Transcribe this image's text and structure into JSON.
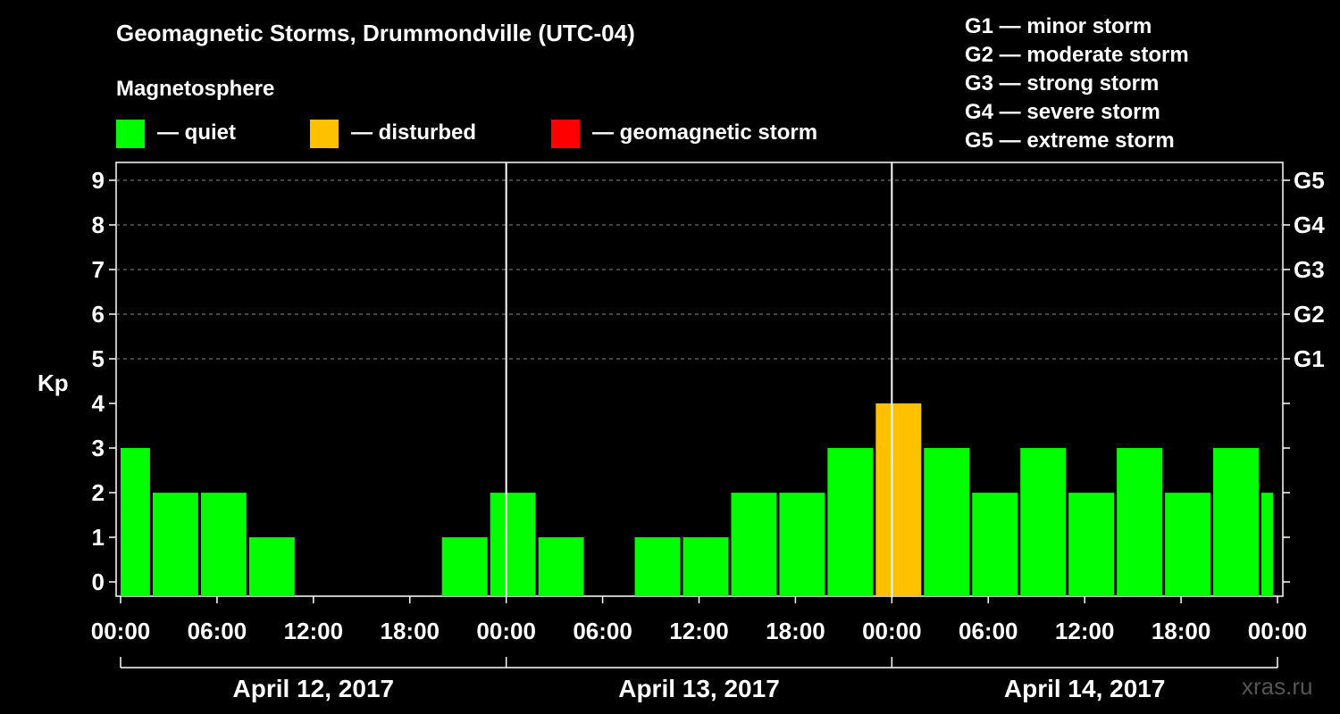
{
  "title": "Geomagnetic Storms, Drummondville (UTC-04)",
  "subtitle": "Magnetosphere",
  "legend": [
    {
      "label": "— quiet",
      "color": "#00ff00"
    },
    {
      "label": "— disturbed",
      "color": "#ffc000"
    },
    {
      "label": "— geomagnetic storm",
      "color": "#ff0000"
    }
  ],
  "storm_scale": [
    "G1 — minor storm",
    "G2 — moderate storm",
    "G3 — strong storm",
    "G4 — severe storm",
    "G5 — extreme storm"
  ],
  "watermark": "xras.ru",
  "chart_data": {
    "type": "bar",
    "ylabel": "Kp",
    "ylim": [
      0,
      9
    ],
    "yticks": [
      "0",
      "1",
      "2",
      "3",
      "4",
      "5",
      "6",
      "7",
      "8",
      "9"
    ],
    "right_ticks": [
      {
        "kp": 5,
        "label": "G1"
      },
      {
        "kp": 6,
        "label": "G2"
      },
      {
        "kp": 7,
        "label": "G3"
      },
      {
        "kp": 8,
        "label": "G4"
      },
      {
        "kp": 9,
        "label": "G5"
      }
    ],
    "xlim_hours": [
      0,
      72
    ],
    "xticks": [
      "00:00",
      "06:00",
      "12:00",
      "18:00",
      "00:00",
      "06:00",
      "12:00",
      "18:00",
      "00:00",
      "06:00",
      "12:00",
      "18:00",
      "00:00"
    ],
    "days": [
      "April 12, 2017",
      "April 13, 2017",
      "April 14, 2017"
    ],
    "grid": "dashed horizontal at Kp 5-9",
    "bars": [
      {
        "start_h": 0,
        "end_h": 1.83,
        "kp": 3,
        "level": "quiet"
      },
      {
        "start_h": 2,
        "end_h": 4.83,
        "kp": 2,
        "level": "quiet"
      },
      {
        "start_h": 5,
        "end_h": 7.83,
        "kp": 2,
        "level": "quiet"
      },
      {
        "start_h": 8,
        "end_h": 10.83,
        "kp": 1,
        "level": "quiet"
      },
      {
        "start_h": 20,
        "end_h": 22.83,
        "kp": 1,
        "level": "quiet"
      },
      {
        "start_h": 23,
        "end_h": 25.83,
        "kp": 2,
        "level": "quiet"
      },
      {
        "start_h": 26,
        "end_h": 28.83,
        "kp": 1,
        "level": "quiet"
      },
      {
        "start_h": 32,
        "end_h": 34.83,
        "kp": 1,
        "level": "quiet"
      },
      {
        "start_h": 35,
        "end_h": 37.83,
        "kp": 1,
        "level": "quiet"
      },
      {
        "start_h": 38,
        "end_h": 40.83,
        "kp": 2,
        "level": "quiet"
      },
      {
        "start_h": 41,
        "end_h": 43.83,
        "kp": 2,
        "level": "quiet"
      },
      {
        "start_h": 44,
        "end_h": 46.83,
        "kp": 3,
        "level": "quiet"
      },
      {
        "start_h": 47,
        "end_h": 49.83,
        "kp": 4,
        "level": "disturbed"
      },
      {
        "start_h": 50,
        "end_h": 52.83,
        "kp": 3,
        "level": "quiet"
      },
      {
        "start_h": 53,
        "end_h": 55.83,
        "kp": 2,
        "level": "quiet"
      },
      {
        "start_h": 56,
        "end_h": 58.83,
        "kp": 3,
        "level": "quiet"
      },
      {
        "start_h": 59,
        "end_h": 61.83,
        "kp": 2,
        "level": "quiet"
      },
      {
        "start_h": 62,
        "end_h": 64.83,
        "kp": 3,
        "level": "quiet"
      },
      {
        "start_h": 65,
        "end_h": 67.83,
        "kp": 2,
        "level": "quiet"
      },
      {
        "start_h": 68,
        "end_h": 70.83,
        "kp": 3,
        "level": "quiet"
      },
      {
        "start_h": 71,
        "end_h": 71.72,
        "kp": 2,
        "level": "quiet"
      }
    ],
    "colors": {
      "quiet": "#00ff00",
      "disturbed": "#ffc000",
      "storm": "#ff0000"
    }
  }
}
